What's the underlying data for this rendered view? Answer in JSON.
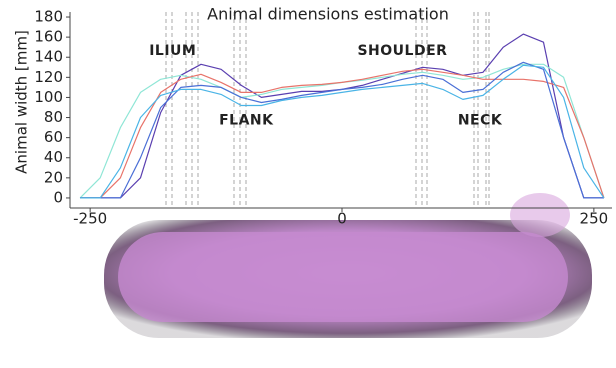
{
  "chart_data": {
    "type": "line",
    "title": "Animal dimensions estimation",
    "y_label": "Animal width [mm]",
    "x": [
      -260,
      -240,
      -220,
      -200,
      -180,
      -160,
      -140,
      -120,
      -100,
      -80,
      -60,
      -40,
      -20,
      0,
      20,
      40,
      60,
      80,
      100,
      120,
      140,
      160,
      180,
      200,
      220,
      240,
      260
    ],
    "series": [
      {
        "color": "#5a3fb0",
        "values": [
          0,
          0,
          0,
          20,
          85,
          122,
          133,
          128,
          112,
          100,
          103,
          106,
          106,
          108,
          112,
          118,
          124,
          130,
          128,
          122,
          125,
          150,
          163,
          155,
          60,
          0,
          0
        ]
      },
      {
        "color": "#8fe6d6",
        "values": [
          0,
          20,
          70,
          105,
          118,
          122,
          118,
          110,
          100,
          103,
          108,
          110,
          112,
          115,
          117,
          120,
          123,
          125,
          122,
          118,
          120,
          128,
          133,
          133,
          120,
          60,
          0
        ]
      },
      {
        "color": "#e8736a",
        "values": [
          0,
          0,
          20,
          70,
          105,
          118,
          123,
          115,
          105,
          105,
          110,
          112,
          113,
          115,
          118,
          122,
          126,
          128,
          125,
          122,
          118,
          118,
          118,
          116,
          110,
          60,
          0
        ]
      },
      {
        "color": "#4a6fd6",
        "values": [
          0,
          0,
          0,
          40,
          90,
          110,
          112,
          110,
          100,
          95,
          98,
          102,
          105,
          108,
          110,
          113,
          118,
          122,
          118,
          105,
          108,
          125,
          135,
          128,
          60,
          0,
          0
        ]
      },
      {
        "color": "#4ab4e6",
        "values": [
          0,
          0,
          30,
          80,
          102,
          108,
          108,
          103,
          92,
          92,
          97,
          100,
          102,
          105,
          108,
          110,
          112,
          114,
          108,
          98,
          102,
          118,
          132,
          130,
          100,
          30,
          0
        ]
      }
    ],
    "annotations": [
      {
        "text": "ILIUM",
        "x": -168,
        "y": 146
      },
      {
        "text": "SHOULDER",
        "x": 60,
        "y": 146
      },
      {
        "text": "FLANK",
        "x": -95,
        "y": 77
      },
      {
        "text": "NECK",
        "x": 137,
        "y": 77
      }
    ],
    "xlim": [
      -270,
      268
    ],
    "ylim": [
      -10,
      185
    ],
    "xticks": [
      -250,
      0,
      250
    ],
    "yticks": [
      0,
      20,
      40,
      60,
      80,
      100,
      120,
      140,
      160,
      180
    ]
  }
}
